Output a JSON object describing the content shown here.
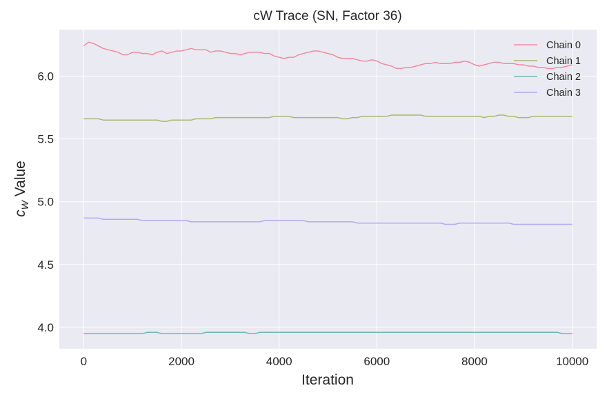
{
  "chart_data": {
    "type": "line",
    "title": "cW Trace (SN, Factor 36)",
    "xlabel": "Iteration",
    "ylabel_main": "c",
    "ylabel_sub": "W",
    "ylabel_rest": " Value",
    "xlim": [
      -500,
      10500
    ],
    "ylim": [
      3.83,
      6.37
    ],
    "xticks": [
      0,
      2000,
      4000,
      6000,
      8000,
      10000
    ],
    "xtick_labels": [
      "0",
      "2000",
      "4000",
      "6000",
      "8000",
      "10000"
    ],
    "yticks": [
      4.0,
      4.5,
      5.0,
      5.5,
      6.0
    ],
    "ytick_labels": [
      "4.0",
      "4.5",
      "5.0",
      "5.5",
      "6.0"
    ],
    "grid": true,
    "legend_position": "top-right",
    "x": [
      0,
      100,
      200,
      300,
      400,
      500,
      600,
      700,
      800,
      900,
      1000,
      1100,
      1200,
      1300,
      1400,
      1500,
      1600,
      1700,
      1800,
      1900,
      2000,
      2100,
      2200,
      2300,
      2400,
      2500,
      2600,
      2700,
      2800,
      2900,
      3000,
      3100,
      3200,
      3300,
      3400,
      3500,
      3600,
      3700,
      3800,
      3900,
      4000,
      4100,
      4200,
      4300,
      4400,
      4500,
      4600,
      4700,
      4800,
      4900,
      5000,
      5100,
      5200,
      5300,
      5400,
      5500,
      5600,
      5700,
      5800,
      5900,
      6000,
      6100,
      6200,
      6300,
      6400,
      6500,
      6600,
      6700,
      6800,
      6900,
      7000,
      7100,
      7200,
      7300,
      7400,
      7500,
      7600,
      7700,
      7800,
      7900,
      8000,
      8100,
      8200,
      8300,
      8400,
      8500,
      8600,
      8700,
      8800,
      8900,
      9000,
      9100,
      9200,
      9300,
      9400,
      9500,
      9600,
      9700,
      9800,
      9900,
      10000
    ],
    "series": [
      {
        "name": "Chain 0",
        "color": "#f08b9c",
        "values": [
          6.24,
          6.27,
          6.26,
          6.24,
          6.22,
          6.21,
          6.2,
          6.19,
          6.17,
          6.17,
          6.19,
          6.19,
          6.18,
          6.18,
          6.17,
          6.19,
          6.2,
          6.18,
          6.19,
          6.2,
          6.2,
          6.21,
          6.22,
          6.21,
          6.21,
          6.21,
          6.19,
          6.2,
          6.2,
          6.19,
          6.18,
          6.18,
          6.17,
          6.18,
          6.19,
          6.19,
          6.19,
          6.18,
          6.18,
          6.16,
          6.15,
          6.14,
          6.15,
          6.15,
          6.17,
          6.18,
          6.19,
          6.2,
          6.2,
          6.19,
          6.18,
          6.17,
          6.15,
          6.14,
          6.14,
          6.14,
          6.13,
          6.12,
          6.12,
          6.13,
          6.12,
          6.1,
          6.09,
          6.08,
          6.06,
          6.06,
          6.07,
          6.07,
          6.08,
          6.09,
          6.1,
          6.1,
          6.11,
          6.1,
          6.1,
          6.1,
          6.11,
          6.11,
          6.12,
          6.11,
          6.09,
          6.08,
          6.09,
          6.1,
          6.11,
          6.11,
          6.1,
          6.1,
          6.1,
          6.09,
          6.09,
          6.08,
          6.08,
          6.07,
          6.07,
          6.06,
          6.06,
          6.07,
          6.07,
          6.08,
          6.09
        ]
      },
      {
        "name": "Chain 1",
        "color": "#a8b86e",
        "values": [
          5.66,
          5.66,
          5.66,
          5.66,
          5.65,
          5.65,
          5.65,
          5.65,
          5.65,
          5.65,
          5.65,
          5.65,
          5.65,
          5.65,
          5.65,
          5.65,
          5.64,
          5.64,
          5.65,
          5.65,
          5.65,
          5.65,
          5.65,
          5.66,
          5.66,
          5.66,
          5.66,
          5.67,
          5.67,
          5.67,
          5.67,
          5.67,
          5.67,
          5.67,
          5.67,
          5.67,
          5.67,
          5.67,
          5.67,
          5.68,
          5.68,
          5.68,
          5.68,
          5.67,
          5.67,
          5.67,
          5.67,
          5.67,
          5.67,
          5.67,
          5.67,
          5.67,
          5.67,
          5.66,
          5.66,
          5.67,
          5.67,
          5.68,
          5.68,
          5.68,
          5.68,
          5.68,
          5.68,
          5.69,
          5.69,
          5.69,
          5.69,
          5.69,
          5.69,
          5.69,
          5.68,
          5.68,
          5.68,
          5.68,
          5.68,
          5.68,
          5.68,
          5.68,
          5.68,
          5.68,
          5.68,
          5.68,
          5.67,
          5.68,
          5.68,
          5.69,
          5.69,
          5.68,
          5.68,
          5.67,
          5.67,
          5.67,
          5.68,
          5.68,
          5.68,
          5.68,
          5.68,
          5.68,
          5.68,
          5.68,
          5.68
        ]
      },
      {
        "name": "Chain 2",
        "color": "#6fb7b3",
        "values": [
          3.95,
          3.95,
          3.95,
          3.95,
          3.95,
          3.95,
          3.95,
          3.95,
          3.95,
          3.95,
          3.95,
          3.95,
          3.95,
          3.96,
          3.96,
          3.96,
          3.95,
          3.95,
          3.95,
          3.95,
          3.95,
          3.95,
          3.95,
          3.95,
          3.95,
          3.96,
          3.96,
          3.96,
          3.96,
          3.96,
          3.96,
          3.96,
          3.96,
          3.96,
          3.95,
          3.95,
          3.96,
          3.96,
          3.96,
          3.96,
          3.96,
          3.96,
          3.96,
          3.96,
          3.96,
          3.96,
          3.96,
          3.96,
          3.96,
          3.96,
          3.96,
          3.96,
          3.96,
          3.96,
          3.96,
          3.96,
          3.96,
          3.96,
          3.96,
          3.96,
          3.96,
          3.96,
          3.96,
          3.96,
          3.96,
          3.96,
          3.96,
          3.96,
          3.96,
          3.96,
          3.96,
          3.96,
          3.96,
          3.96,
          3.96,
          3.96,
          3.96,
          3.96,
          3.96,
          3.96,
          3.96,
          3.96,
          3.96,
          3.96,
          3.96,
          3.96,
          3.96,
          3.96,
          3.96,
          3.96,
          3.96,
          3.96,
          3.96,
          3.96,
          3.96,
          3.96,
          3.96,
          3.96,
          3.95,
          3.95,
          3.95
        ]
      },
      {
        "name": "Chain 3",
        "color": "#b6a6f2",
        "values": [
          4.87,
          4.87,
          4.87,
          4.87,
          4.86,
          4.86,
          4.86,
          4.86,
          4.86,
          4.86,
          4.86,
          4.86,
          4.85,
          4.85,
          4.85,
          4.85,
          4.85,
          4.85,
          4.85,
          4.85,
          4.85,
          4.85,
          4.84,
          4.84,
          4.84,
          4.84,
          4.84,
          4.84,
          4.84,
          4.84,
          4.84,
          4.84,
          4.84,
          4.84,
          4.84,
          4.84,
          4.84,
          4.85,
          4.85,
          4.85,
          4.85,
          4.85,
          4.85,
          4.85,
          4.85,
          4.85,
          4.84,
          4.84,
          4.84,
          4.84,
          4.84,
          4.84,
          4.84,
          4.84,
          4.84,
          4.84,
          4.83,
          4.83,
          4.83,
          4.83,
          4.83,
          4.83,
          4.83,
          4.83,
          4.83,
          4.83,
          4.83,
          4.83,
          4.83,
          4.83,
          4.83,
          4.83,
          4.83,
          4.83,
          4.82,
          4.82,
          4.82,
          4.83,
          4.83,
          4.83,
          4.83,
          4.83,
          4.83,
          4.83,
          4.83,
          4.83,
          4.83,
          4.83,
          4.82,
          4.82,
          4.82,
          4.82,
          4.82,
          4.82,
          4.82,
          4.82,
          4.82,
          4.82,
          4.82,
          4.82,
          4.82
        ]
      }
    ]
  }
}
